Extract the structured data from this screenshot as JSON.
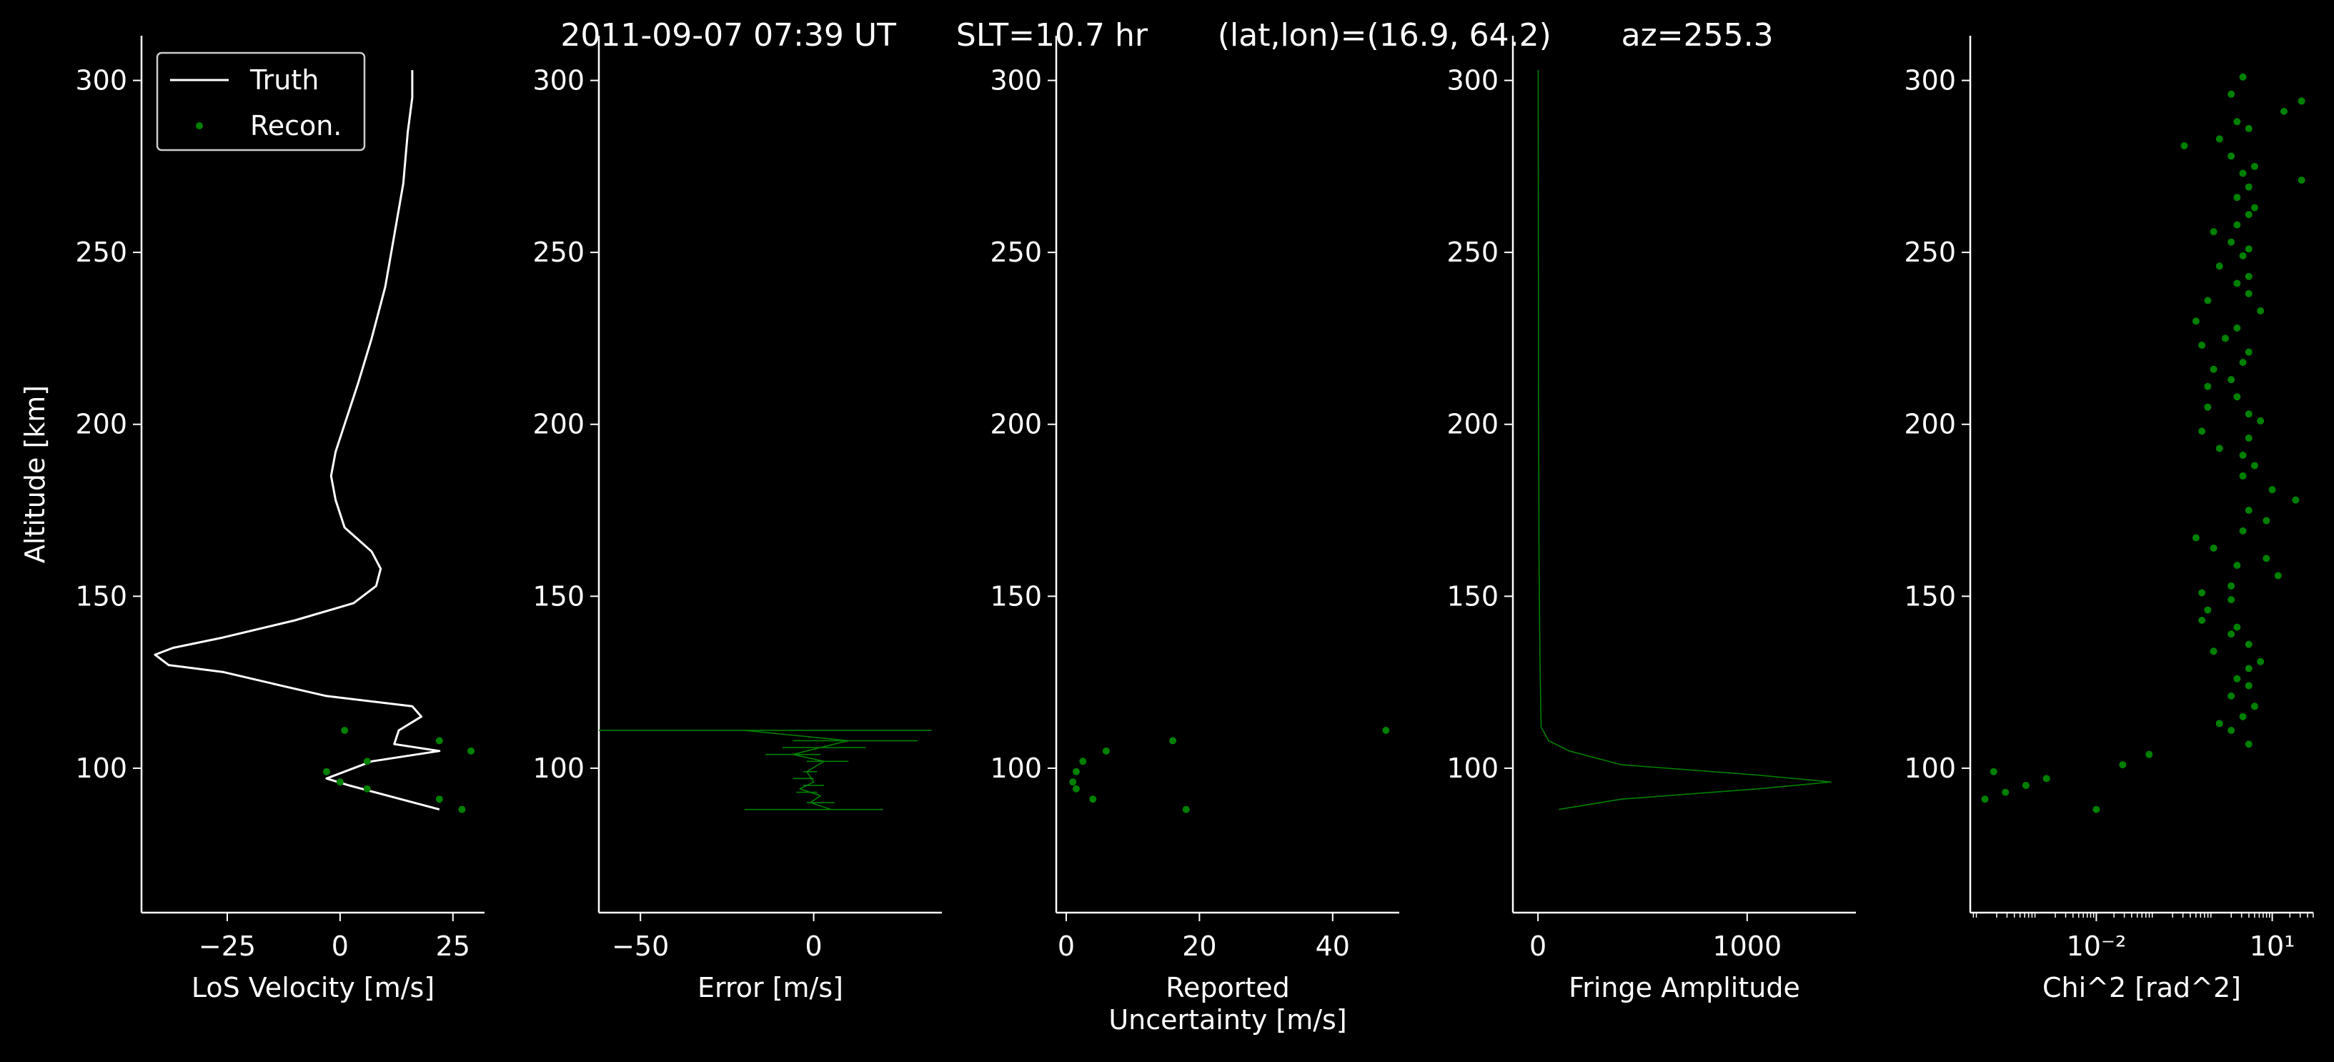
{
  "figure": {
    "title": "2011-09-07 07:39 UT      SLT=10.7 hr       (lat,lon)=(16.9, 64.2)       az=255.3",
    "background": "#000000",
    "foreground": "#ffffff",
    "data_color": "#008000"
  },
  "chart_data": [
    {
      "type": "line",
      "xlabel": "LoS Velocity [m/s]",
      "ylabel": "Altitude [km]",
      "xlim": [
        -44,
        32
      ],
      "ylim": [
        58,
        313
      ],
      "xticks": [
        -25,
        0,
        25
      ],
      "xtick_labels": [
        "−25",
        "0",
        "25"
      ],
      "yticks": [
        100,
        150,
        200,
        250,
        300
      ],
      "ytick_labels": [
        "100",
        "150",
        "200",
        "250",
        "300"
      ],
      "legend": {
        "position": "top-left",
        "entries": [
          {
            "label": "Truth",
            "style": "line",
            "color": "#ffffff"
          },
          {
            "label": "Recon.",
            "style": "dot",
            "color": "#008000"
          }
        ]
      },
      "series": [
        {
          "name": "Truth",
          "style": "line",
          "color": "#ffffff",
          "x": [
            22,
            2,
            -3,
            7,
            22,
            12,
            13,
            18,
            16,
            -3,
            -13,
            -26,
            -38,
            -41,
            -37,
            -26,
            -10,
            3,
            8,
            9,
            7,
            1,
            -1,
            -2,
            -1,
            1,
            4,
            7,
            10,
            12,
            14,
            15,
            16,
            16
          ],
          "y": [
            88,
            95,
            97,
            102,
            105,
            107,
            111,
            115,
            118,
            121,
            124,
            128,
            130,
            133,
            135,
            138,
            143,
            148,
            153,
            158,
            163,
            170,
            178,
            185,
            192,
            200,
            212,
            225,
            240,
            255,
            270,
            285,
            295,
            303
          ]
        },
        {
          "name": "Recon.",
          "style": "dot",
          "color": "#008000",
          "x": [
            27,
            22,
            6,
            0,
            -3,
            6,
            29,
            22,
            1
          ],
          "y": [
            88,
            91,
            94,
            96,
            99,
            102,
            105,
            108,
            111
          ]
        }
      ]
    },
    {
      "type": "line",
      "xlabel": "Error [m/s]",
      "xlim": [
        -62,
        37
      ],
      "ylim": [
        58,
        313
      ],
      "xticks": [
        -50,
        0
      ],
      "xtick_labels": [
        "−50",
        "0"
      ],
      "yticks": [
        100,
        150,
        200,
        250,
        300
      ],
      "ytick_labels": [
        "100",
        "150",
        "200",
        "250",
        "300"
      ],
      "series": [
        {
          "name": "",
          "style": "line",
          "color": "#008000",
          "x": [
            5,
            -1,
            2,
            -4,
            0,
            -2,
            3,
            -6,
            2,
            10,
            -20
          ],
          "y": [
            88,
            90,
            92,
            94,
            96,
            99,
            102,
            104,
            106,
            108,
            111
          ]
        },
        {
          "name": "",
          "style": "errorbar",
          "color": "#008000",
          "x": [
            0,
            2,
            -2,
            0,
            -3,
            -1,
            4,
            -6,
            3,
            12,
            -14
          ],
          "y": [
            88,
            90,
            93,
            95,
            97,
            99,
            102,
            104,
            106,
            108,
            111
          ],
          "err": [
            20,
            4,
            3,
            3,
            3,
            2,
            6,
            8,
            12,
            18,
            48
          ]
        }
      ]
    },
    {
      "type": "scatter",
      "xlabel": "Reported\nUncertainty [m/s]",
      "xlim": [
        -1.5,
        50
      ],
      "ylim": [
        58,
        313
      ],
      "xticks": [
        0,
        20,
        40
      ],
      "xtick_labels": [
        "0",
        "20",
        "40"
      ],
      "yticks": [
        100,
        150,
        200,
        250,
        300
      ],
      "ytick_labels": [
        "100",
        "150",
        "200",
        "250",
        "300"
      ],
      "series": [
        {
          "name": "",
          "style": "dot",
          "color": "#008000",
          "x": [
            48,
            16,
            6,
            2.5,
            1.5,
            1,
            1.5,
            4,
            18
          ],
          "y": [
            111,
            108,
            105,
            102,
            99,
            96,
            94,
            91,
            88
          ]
        }
      ]
    },
    {
      "type": "line",
      "xlabel": "Fringe Amplitude",
      "xlim": [
        -120,
        1520
      ],
      "ylim": [
        58,
        313
      ],
      "xticks": [
        0,
        1000
      ],
      "xtick_labels": [
        "0",
        "1000"
      ],
      "yticks": [
        100,
        150,
        200,
        250,
        300
      ],
      "ytick_labels": [
        "100",
        "150",
        "200",
        "250",
        "300"
      ],
      "series": [
        {
          "name": "",
          "style": "line",
          "color": "#008000",
          "x": [
            100,
            400,
            1050,
            1400,
            1050,
            400,
            150,
            50,
            15,
            10,
            5,
            3,
            2,
            1
          ],
          "y": [
            88,
            91,
            94,
            96,
            98,
            101,
            105,
            108,
            112,
            130,
            160,
            200,
            250,
            303
          ]
        }
      ]
    },
    {
      "type": "scatter",
      "xlabel": "Chi^2 [rad^2]",
      "xscale": "log",
      "xlim_log10": [
        -4.15,
        1.7
      ],
      "ylim": [
        58,
        313
      ],
      "xticks_log10": [
        -2,
        1
      ],
      "xtick_labels": [
        "10⁻²",
        "10¹"
      ],
      "yticks": [
        100,
        150,
        200,
        250,
        300
      ],
      "ytick_labels": [
        "100",
        "150",
        "200",
        "250",
        "300"
      ],
      "series": [
        {
          "name": "",
          "style": "dot",
          "color": "#008000",
          "x_log10": [
            -2,
            -3.9,
            -3.55,
            -3.2,
            -2.85,
            -3.75,
            -1.55,
            -1.1,
            0.6,
            0.3,
            0.1,
            0.5,
            0.7,
            0.3,
            0.6,
            0.4,
            0.6,
            0.8,
            0.0,
            0.6,
            0.3,
            0.4,
            -0.2,
            -0.1,
            0.3,
            -0.2,
            0.3,
            1.1,
            0.4,
            0.9,
            0.0,
            -0.3,
            0.5,
            0.9,
            0.6,
            1.4,
            1.0,
            0.5,
            0.7,
            0.5,
            0.1,
            0.6,
            -0.2,
            0.8,
            0.6,
            -0.1,
            0.4,
            -0.1,
            0.3,
            0.0,
            0.5,
            0.6,
            -0.2,
            0.2,
            0.4,
            -0.3,
            0.8,
            -0.1,
            0.6,
            0.4,
            0.6,
            0.1,
            0.5,
            0.6,
            0.3,
            0.0,
            0.4,
            0.6,
            0.7,
            0.4,
            0.6,
            1.5,
            0.5,
            0.7,
            0.3,
            -0.5,
            0.1,
            0.6,
            0.4,
            1.2,
            1.5,
            0.3,
            0.5
          ],
          "y": [
            88,
            91,
            93,
            95,
            97,
            99,
            101,
            104,
            107,
            111,
            113,
            115,
            118,
            121,
            124,
            126,
            129,
            131,
            134,
            136,
            139,
            141,
            143,
            146,
            149,
            151,
            153,
            156,
            159,
            161,
            164,
            167,
            169,
            172,
            175,
            178,
            181,
            185,
            188,
            191,
            193,
            196,
            198,
            201,
            203,
            205,
            208,
            211,
            213,
            216,
            218,
            221,
            223,
            225,
            228,
            230,
            233,
            236,
            238,
            241,
            243,
            246,
            249,
            251,
            253,
            256,
            258,
            261,
            263,
            266,
            269,
            271,
            273,
            275,
            278,
            281,
            283,
            286,
            288,
            291,
            294,
            296,
            301
          ]
        }
      ]
    }
  ]
}
